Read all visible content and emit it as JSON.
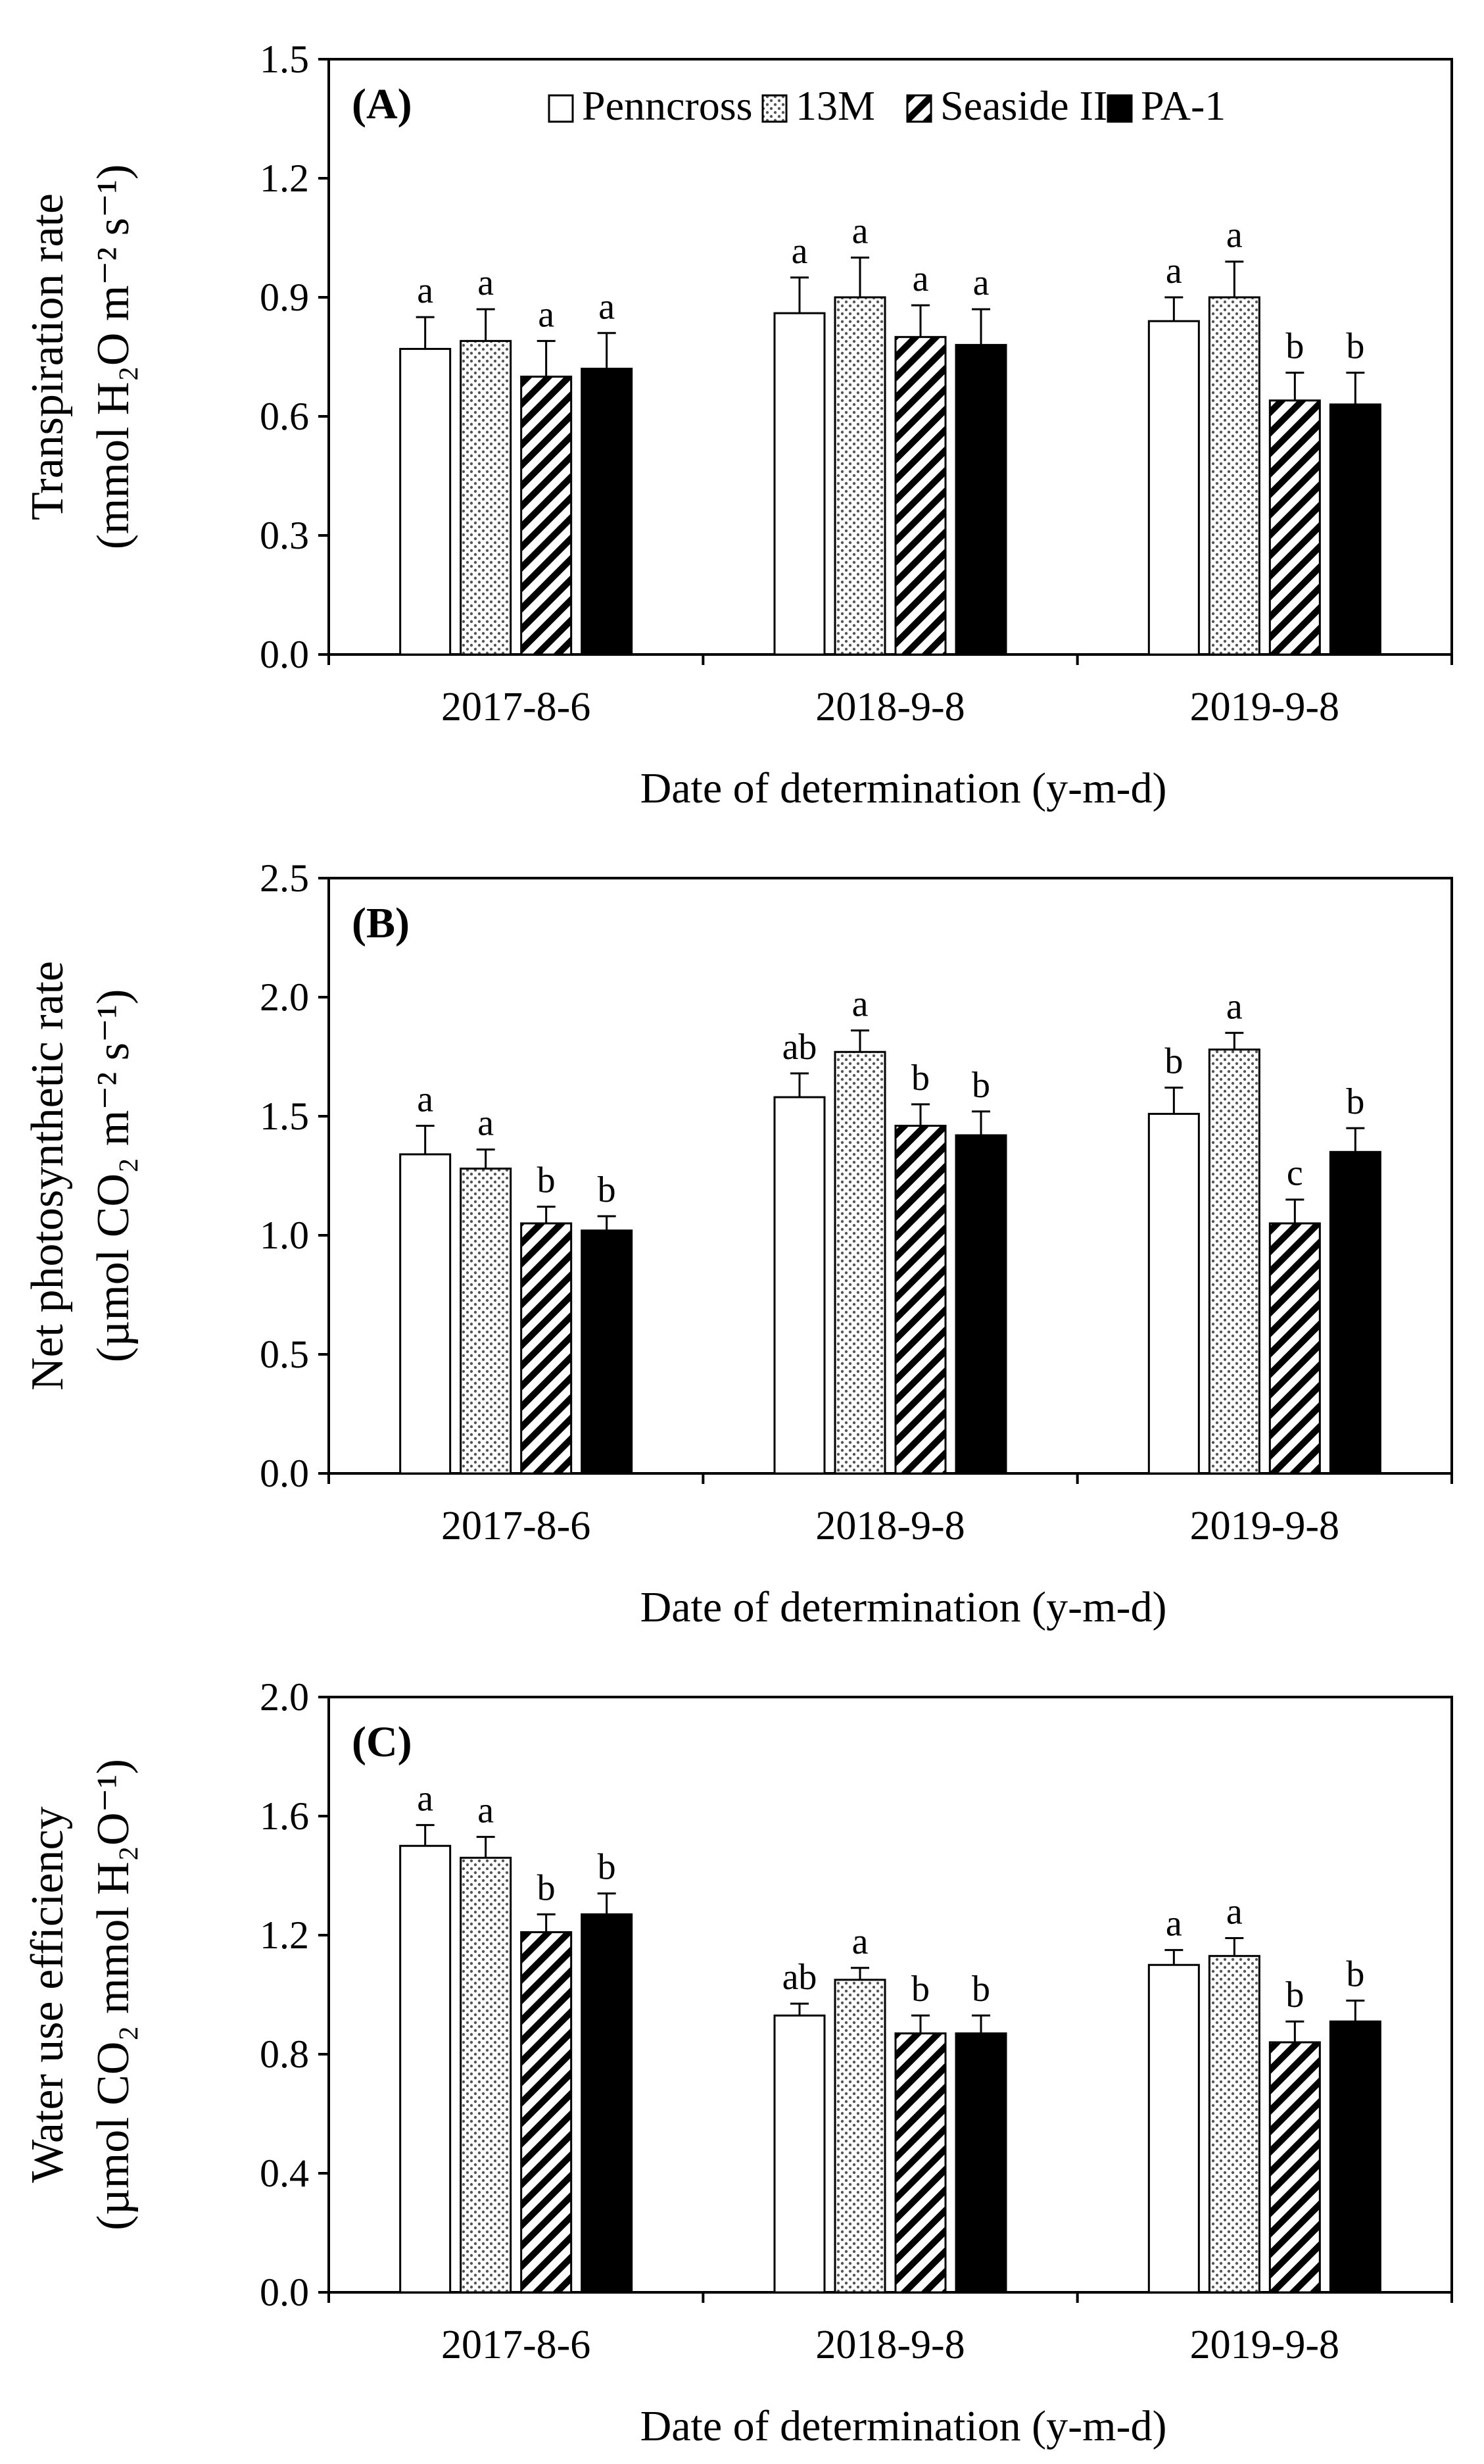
{
  "legend": [
    {
      "name": "Penncross",
      "pattern": "white"
    },
    {
      "name": "13M",
      "pattern": "dots"
    },
    {
      "name": "Seaside II",
      "pattern": "hatch"
    },
    {
      "name": "PA-1",
      "pattern": "black"
    }
  ],
  "colors": {
    "bar_white": "#ffffff",
    "bar_black": "#000000",
    "axis": "#000000",
    "dots": "#555555"
  },
  "chart_data": [
    {
      "type": "bar",
      "panel": "(A)",
      "ylabel_line1": "Transpiration rate",
      "ylabel_line2": "(mmol H₂O m⁻² s⁻¹)",
      "xlabel": "Date of determination (y-m-d)",
      "categories": [
        "2017-8-6",
        "2018-9-8",
        "2019-9-8"
      ],
      "ylim": [
        0,
        1.5
      ],
      "yticks": [
        0,
        0.3,
        0.6,
        0.9,
        1.2,
        1.5
      ],
      "tick_labels": [
        "0.0",
        "0.3",
        "0.6",
        "0.9",
        "1.2",
        "1.5"
      ],
      "legend_in_panel": true,
      "series": [
        {
          "name": "Penncross",
          "values": [
            0.77,
            0.86,
            0.84
          ],
          "errors": [
            0.08,
            0.09,
            0.06
          ],
          "letters": [
            "a",
            "a",
            "a"
          ]
        },
        {
          "name": "13M",
          "values": [
            0.79,
            0.9,
            0.9
          ],
          "errors": [
            0.08,
            0.1,
            0.09
          ],
          "letters": [
            "a",
            "a",
            "a"
          ]
        },
        {
          "name": "Seaside II",
          "values": [
            0.7,
            0.8,
            0.64
          ],
          "errors": [
            0.09,
            0.08,
            0.07
          ],
          "letters": [
            "a",
            "a",
            "b"
          ]
        },
        {
          "name": "PA-1",
          "values": [
            0.72,
            0.78,
            0.63
          ],
          "errors": [
            0.09,
            0.09,
            0.08
          ],
          "letters": [
            "a",
            "a",
            "b"
          ]
        }
      ]
    },
    {
      "type": "bar",
      "panel": "(B)",
      "ylabel_line1": "Net photosynthetic rate",
      "ylabel_line2": "(µmol CO₂ m⁻² s⁻¹)",
      "xlabel": "Date of determination (y-m-d)",
      "categories": [
        "2017-8-6",
        "2018-9-8",
        "2019-9-8"
      ],
      "ylim": [
        0,
        2.5
      ],
      "yticks": [
        0,
        0.5,
        1.0,
        1.5,
        2.0,
        2.5
      ],
      "tick_labels": [
        "0.0",
        "0.5",
        "1.0",
        "1.5",
        "2.0",
        "2.5"
      ],
      "legend_in_panel": false,
      "series": [
        {
          "name": "Penncross",
          "values": [
            1.34,
            1.58,
            1.51
          ],
          "errors": [
            0.12,
            0.1,
            0.11
          ],
          "letters": [
            "a",
            "ab",
            "b"
          ]
        },
        {
          "name": "13M",
          "values": [
            1.28,
            1.77,
            1.78
          ],
          "errors": [
            0.08,
            0.09,
            0.07
          ],
          "letters": [
            "a",
            "a",
            "a"
          ]
        },
        {
          "name": "Seaside II",
          "values": [
            1.05,
            1.46,
            1.05
          ],
          "errors": [
            0.07,
            0.09,
            0.1
          ],
          "letters": [
            "b",
            "b",
            "c"
          ]
        },
        {
          "name": "PA-1",
          "values": [
            1.02,
            1.42,
            1.35
          ],
          "errors": [
            0.06,
            0.1,
            0.1
          ],
          "letters": [
            "b",
            "b",
            "b"
          ]
        }
      ]
    },
    {
      "type": "bar",
      "panel": "(C)",
      "ylabel_line1": "Water use efficiency",
      "ylabel_line2": "(µmol CO₂ mmol H₂O⁻¹)",
      "xlabel": "Date of determination (y-m-d)",
      "categories": [
        "2017-8-6",
        "2018-9-8",
        "2019-9-8"
      ],
      "ylim": [
        0,
        2.0
      ],
      "yticks": [
        0,
        0.4,
        0.8,
        1.2,
        1.6,
        2.0
      ],
      "tick_labels": [
        "0.0",
        "0.4",
        "0.8",
        "1.2",
        "1.6",
        "2.0"
      ],
      "legend_in_panel": false,
      "series": [
        {
          "name": "Penncross",
          "values": [
            1.5,
            0.93,
            1.1
          ],
          "errors": [
            0.07,
            0.04,
            0.05
          ],
          "letters": [
            "a",
            "ab",
            "a"
          ]
        },
        {
          "name": "13M",
          "values": [
            1.46,
            1.05,
            1.13
          ],
          "errors": [
            0.07,
            0.04,
            0.06
          ],
          "letters": [
            "a",
            "a",
            "a"
          ]
        },
        {
          "name": "Seaside II",
          "values": [
            1.21,
            0.87,
            0.84
          ],
          "errors": [
            0.06,
            0.06,
            0.07
          ],
          "letters": [
            "b",
            "b",
            "b"
          ]
        },
        {
          "name": "PA-1",
          "values": [
            1.27,
            0.87,
            0.91
          ],
          "errors": [
            0.07,
            0.06,
            0.07
          ],
          "letters": [
            "b",
            "b",
            "b"
          ]
        }
      ]
    }
  ]
}
